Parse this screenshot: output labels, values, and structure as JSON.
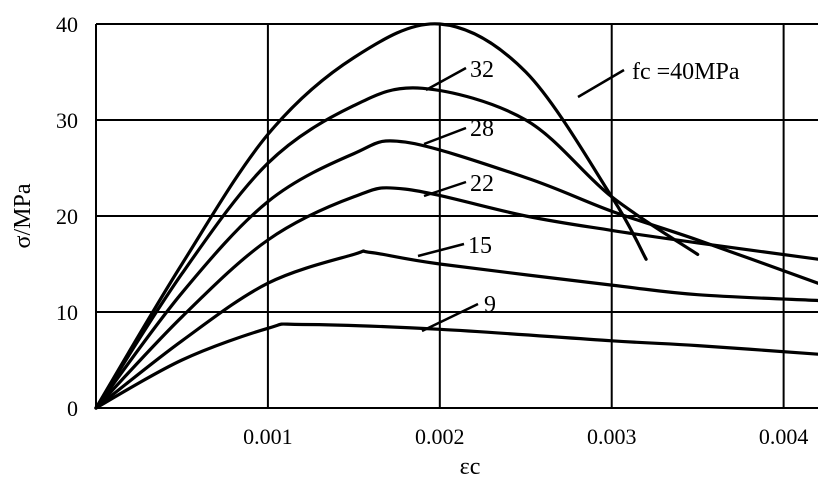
{
  "chart_data": {
    "type": "line",
    "xlabel": "εc",
    "ylabel": "σ/MPa",
    "xlim": [
      0,
      0.0042
    ],
    "ylim": [
      0,
      40
    ],
    "x_ticks": [
      "0.001",
      "0.002",
      "0.003",
      "0.004"
    ],
    "y_ticks": [
      "0",
      "10",
      "20",
      "30",
      "40"
    ],
    "grid": true,
    "series": [
      {
        "name": "fc =40MPa",
        "x": [
          0,
          0.0005,
          0.001,
          0.0015,
          0.002,
          0.0025,
          0.003,
          0.0032
        ],
        "y": [
          0,
          15,
          28.5,
          36.5,
          40,
          35,
          22,
          15.5
        ]
      },
      {
        "name": "32",
        "x": [
          0,
          0.0005,
          0.001,
          0.0015,
          0.0019,
          0.0025,
          0.003,
          0.0035
        ],
        "y": [
          0,
          14,
          25.5,
          31.5,
          33.3,
          30,
          22,
          16
        ]
      },
      {
        "name": "28",
        "x": [
          0,
          0.0005,
          0.001,
          0.0015,
          0.0018,
          0.0025,
          0.003,
          0.0035,
          0.0042
        ],
        "y": [
          0,
          12,
          21.5,
          26.5,
          27.7,
          24,
          20.5,
          17.5,
          13
        ]
      },
      {
        "name": "22",
        "x": [
          0,
          0.0005,
          0.001,
          0.0015,
          0.0018,
          0.0025,
          0.003,
          0.0035,
          0.0042
        ],
        "y": [
          0,
          9.5,
          17.5,
          22,
          22.8,
          20,
          18.5,
          17.2,
          15.5
        ]
      },
      {
        "name": "15",
        "x": [
          0,
          0.0005,
          0.001,
          0.0015,
          0.0016,
          0.002,
          0.003,
          0.0035,
          0.0042
        ],
        "y": [
          0,
          7,
          13,
          16,
          16.2,
          15,
          12.8,
          11.8,
          11.2
        ]
      },
      {
        "name": "9",
        "x": [
          0,
          0.0005,
          0.001,
          0.0012,
          0.002,
          0.003,
          0.0035,
          0.0042
        ],
        "y": [
          0,
          5,
          8.3,
          8.7,
          8.2,
          7,
          6.5,
          5.6
        ]
      }
    ]
  }
}
